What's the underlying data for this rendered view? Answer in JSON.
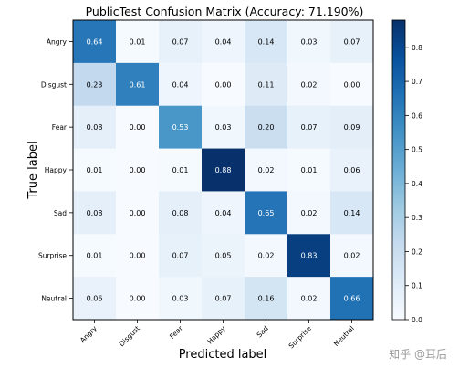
{
  "chart_data": {
    "type": "heatmap",
    "title": "PublicTest Confusion Matrix (Accuracy: 71.190%)",
    "xlabel": "Predicted label",
    "ylabel": "True label",
    "x_categories": [
      "Angry",
      "Disgust",
      "Fear",
      "Happy",
      "Sad",
      "Surprise",
      "Neutral"
    ],
    "y_categories": [
      "Angry",
      "Disgust",
      "Fear",
      "Happy",
      "Sad",
      "Surprise",
      "Neutral"
    ],
    "values": [
      [
        0.64,
        0.01,
        0.07,
        0.04,
        0.14,
        0.03,
        0.07
      ],
      [
        0.23,
        0.61,
        0.04,
        0.0,
        0.11,
        0.02,
        0.0
      ],
      [
        0.08,
        0.0,
        0.53,
        0.03,
        0.2,
        0.07,
        0.09
      ],
      [
        0.01,
        0.0,
        0.01,
        0.88,
        0.02,
        0.01,
        0.06
      ],
      [
        0.08,
        0.0,
        0.08,
        0.04,
        0.65,
        0.02,
        0.14
      ],
      [
        0.01,
        0.0,
        0.07,
        0.05,
        0.02,
        0.83,
        0.02
      ],
      [
        0.06,
        0.0,
        0.03,
        0.07,
        0.16,
        0.02,
        0.66
      ]
    ],
    "colorbar": {
      "range": [
        0.0,
        0.88
      ],
      "ticks": [
        "0.0",
        "0.1",
        "0.2",
        "0.3",
        "0.4",
        "0.5",
        "0.6",
        "0.7",
        "0.8"
      ],
      "colormap": "Blues"
    },
    "grid": false
  },
  "watermark": "知乎 @耳后"
}
